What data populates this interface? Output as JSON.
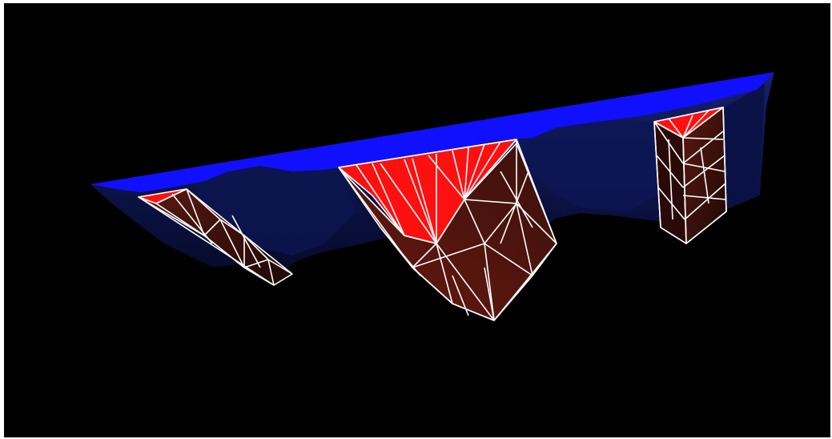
{
  "viewport": {
    "background": "#000000",
    "page_background": "#ffffff"
  },
  "colors": {
    "top_surface": "#1010ff",
    "body_dark": "#0b1240",
    "body_mid": "#101a5a",
    "cavity_top": "#ff1010",
    "cavity_side_dark": "#2a0a08",
    "cavity_side_mid": "#4a120c",
    "wireframe": "#ffffff"
  },
  "objects": [
    {
      "name": "terrain-block",
      "description_role": "blue mesh"
    },
    {
      "name": "cavity-left"
    },
    {
      "name": "cavity-center"
    },
    {
      "name": "cavity-right"
    }
  ]
}
